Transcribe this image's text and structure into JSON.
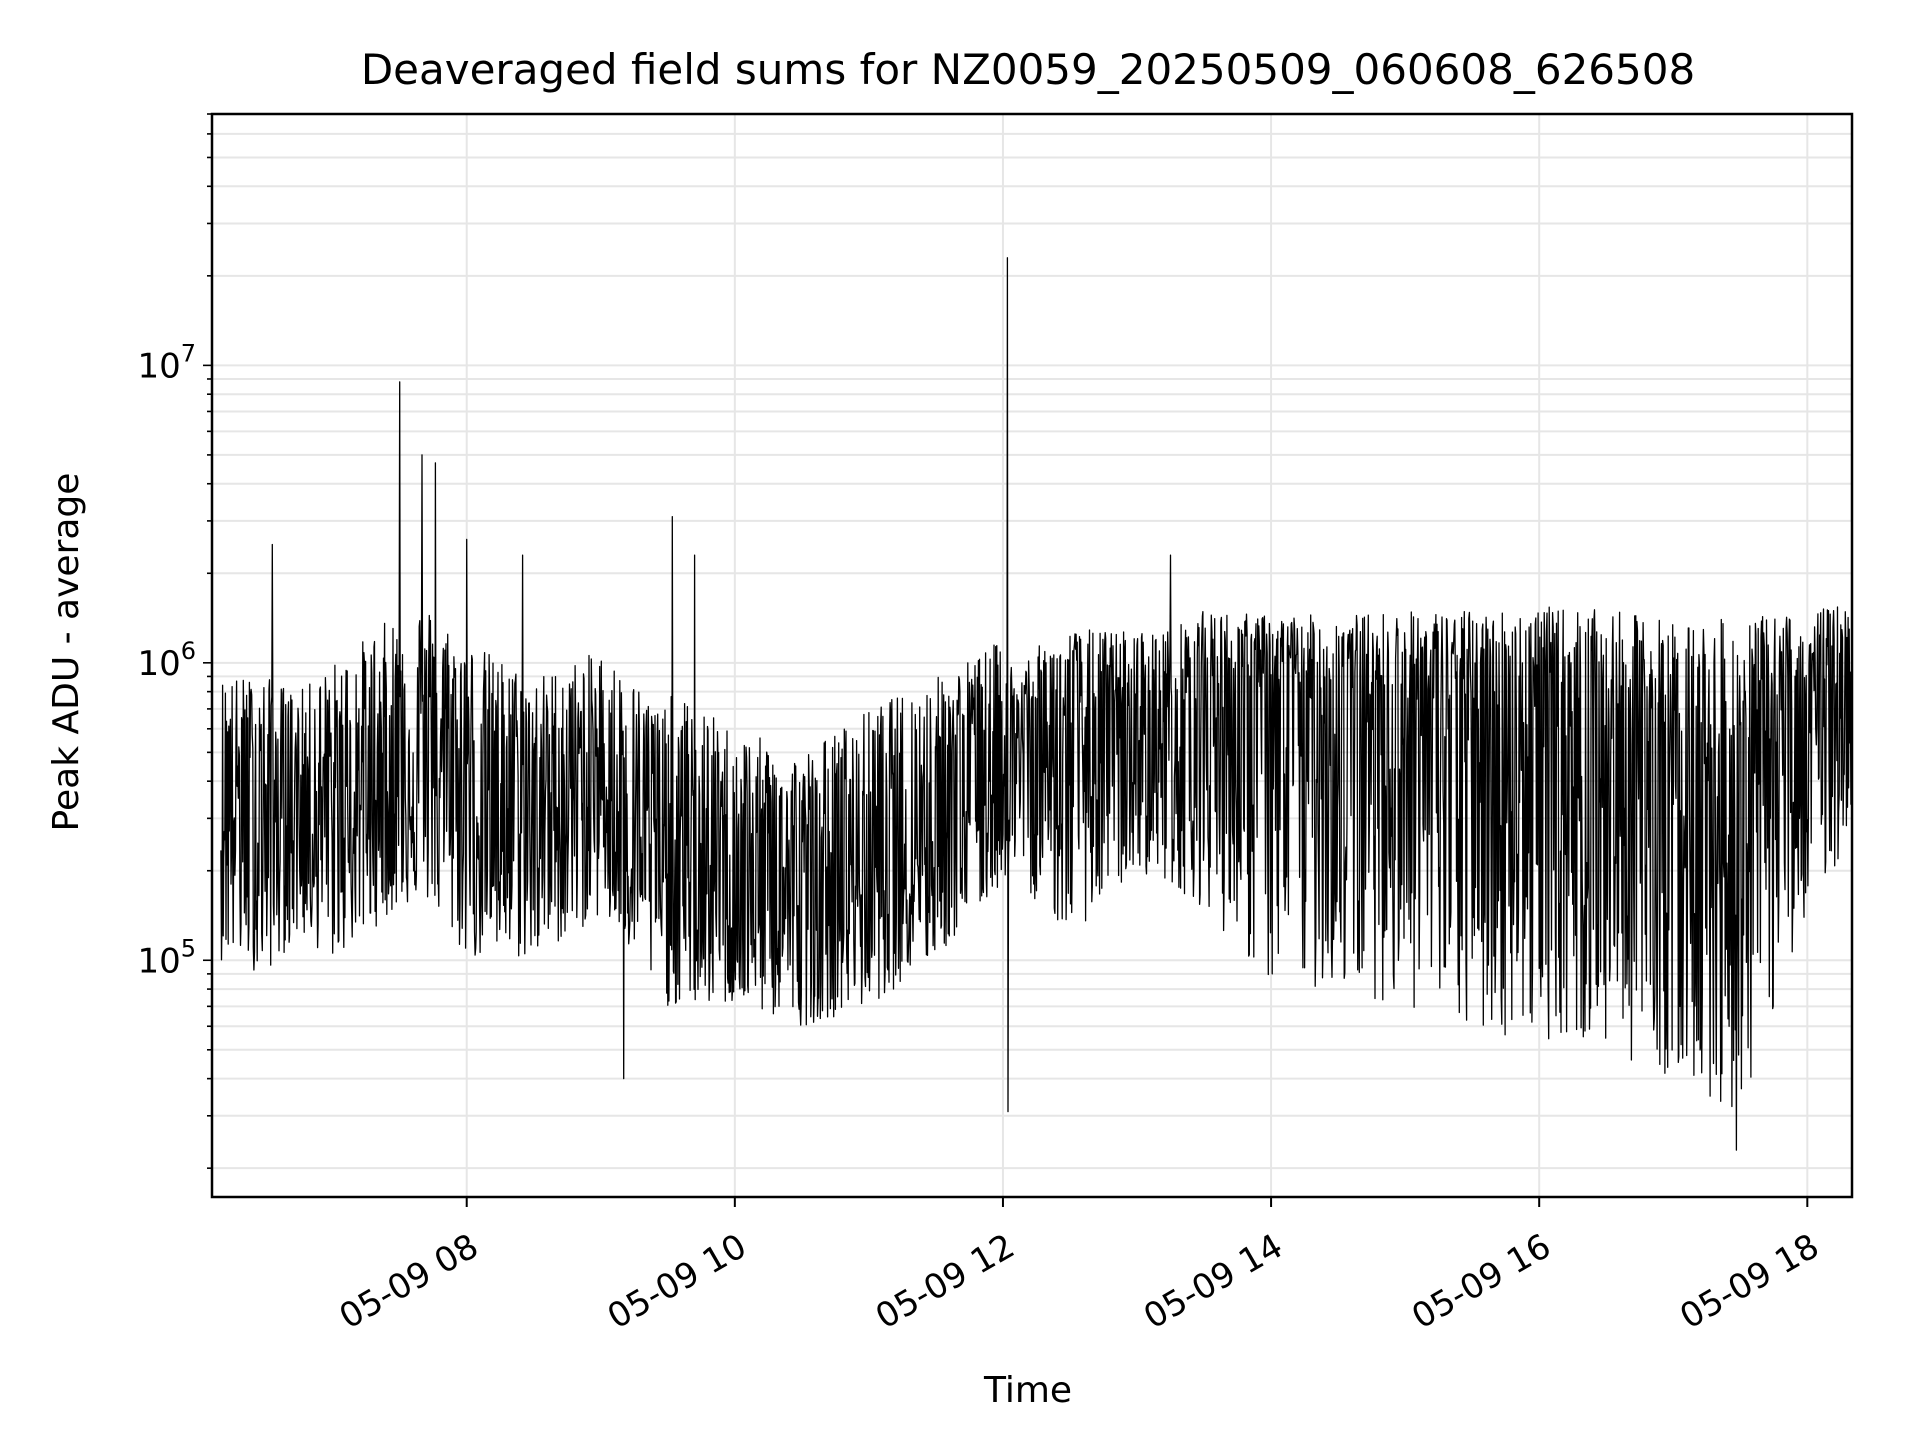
{
  "chart_data": {
    "type": "line",
    "title": "Deaveraged field sums for NZ0059_20250509_060608_626508",
    "xlabel": "Time",
    "ylabel": "Peak ADU - average",
    "yscale": "log",
    "xlim": [
      "2025-05-09 06:06",
      "2025-05-09 18:20"
    ],
    "ylim": [
      16000,
      70000000
    ],
    "x_ticks": [
      {
        "value": "2025-05-09 08:00",
        "label": "05-09 08"
      },
      {
        "value": "2025-05-09 10:00",
        "label": "05-09 10"
      },
      {
        "value": "2025-05-09 12:00",
        "label": "05-09 12"
      },
      {
        "value": "2025-05-09 14:00",
        "label": "05-09 14"
      },
      {
        "value": "2025-05-09 16:00",
        "label": "05-09 16"
      },
      {
        "value": "2025-05-09 18:00",
        "label": "05-09 18"
      }
    ],
    "y_ticks": [
      {
        "value": 100000,
        "base": "10",
        "exp": "5"
      },
      {
        "value": 1000000,
        "base": "10",
        "exp": "6"
      },
      {
        "value": 10000000,
        "base": "10",
        "exp": "7"
      }
    ],
    "grid": true,
    "line_color": "#000000",
    "grid_color": "#e6e6e6",
    "series": [
      {
        "x": [
          "2025-05-09 06:10",
          "2025-05-09 06:30",
          "2025-05-09 06:45",
          "2025-05-09 07:00",
          "2025-05-09 07:30",
          "2025-05-09 07:41",
          "2025-05-09 08:00",
          "2025-05-09 08:30",
          "2025-05-09 09:00",
          "2025-05-09 09:30",
          "2025-05-09 09:32",
          "2025-05-09 10:00",
          "2025-05-09 10:30",
          "2025-05-09 11:00",
          "2025-05-09 11:30",
          "2025-05-09 12:00",
          "2025-05-09 12:02",
          "2025-05-09 12:30",
          "2025-05-09 13:00",
          "2025-05-09 13:15",
          "2025-05-09 13:30",
          "2025-05-09 14:00",
          "2025-05-09 14:30",
          "2025-05-09 15:00",
          "2025-05-09 15:30",
          "2025-05-09 16:00",
          "2025-05-09 16:30",
          "2025-05-09 17:00",
          "2025-05-09 17:30",
          "2025-05-09 18:00",
          "2025-05-09 18:20"
        ],
        "y": [
          400000,
          300000,
          350000,
          300000,
          400000,
          500000,
          350000,
          300000,
          400000,
          200000,
          180000,
          180000,
          160000,
          200000,
          300000,
          450000,
          500000,
          500000,
          500000,
          600000,
          800000,
          750000,
          750000,
          700000,
          650000,
          600000,
          500000,
          450000,
          300000,
          700000,
          750000
        ],
        "upper_envelope": [
          900000,
          900000,
          800000,
          1000000,
          1500000,
          1600000,
          1200000,
          900000,
          1100000,
          700000,
          800000,
          600000,
          500000,
          700000,
          900000,
          1200000,
          1000000,
          1300000,
          1300000,
          1300000,
          1500000,
          1450000,
          1450000,
          1500000,
          1500000,
          1550000,
          1500000,
          1400000,
          1400000,
          1500000,
          1600000
        ],
        "lower_envelope": [
          100000,
          90000,
          120000,
          100000,
          150000,
          160000,
          100000,
          100000,
          140000,
          70000,
          70000,
          70000,
          60000,
          70000,
          100000,
          180000,
          200000,
          120000,
          200000,
          180000,
          150000,
          80000,
          80000,
          70000,
          55000,
          55000,
          50000,
          40000,
          30000,
          150000,
          250000
        ],
        "spikes": [
          {
            "x": "2025-05-09 06:33",
            "y": 2500000
          },
          {
            "x": "2025-05-09 07:30",
            "y": 8800000
          },
          {
            "x": "2025-05-09 07:40",
            "y": 5000000
          },
          {
            "x": "2025-05-09 07:46",
            "y": 4700000
          },
          {
            "x": "2025-05-09 08:00",
            "y": 2600000
          },
          {
            "x": "2025-05-09 08:25",
            "y": 2300000
          },
          {
            "x": "2025-05-09 09:32",
            "y": 3100000
          },
          {
            "x": "2025-05-09 09:42",
            "y": 2300000
          },
          {
            "x": "2025-05-09 12:02",
            "y": 23000000
          },
          {
            "x": "2025-05-09 13:15",
            "y": 2300000
          }
        ],
        "dips": [
          {
            "x": "2025-05-09 09:10",
            "y": 40000
          },
          {
            "x": "2025-05-09 12:02",
            "y": 31000
          },
          {
            "x": "2025-05-09 17:28",
            "y": 23000
          }
        ]
      }
    ]
  }
}
